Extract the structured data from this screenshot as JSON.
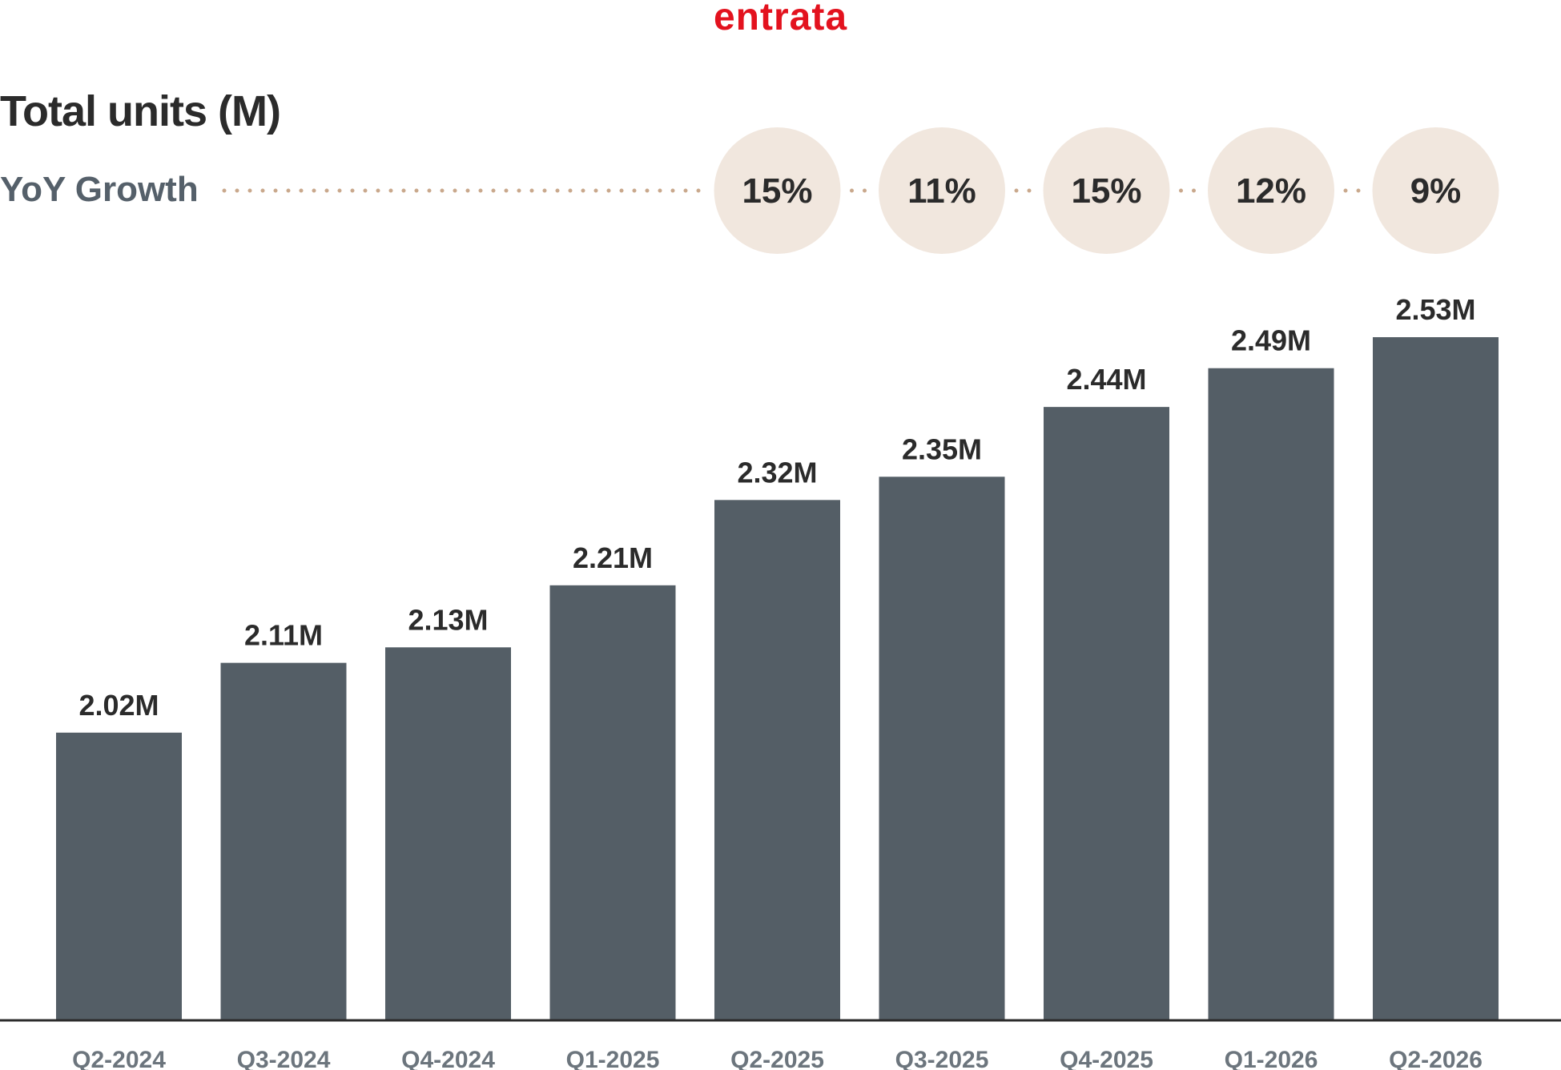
{
  "brand": {
    "logo_text": "entrata",
    "logo_color": "#e3121e"
  },
  "colors": {
    "bar": "#545e66",
    "bubble": "#f1e7de",
    "dots": "#c9a88c",
    "axis": "#2b2b2b",
    "value_label": "#2b2b2b",
    "tick_label": "#6c757d"
  },
  "chart_data": {
    "type": "bar",
    "title": "Total units (M)",
    "categories": [
      "Q2-2024",
      "Q3-2024",
      "Q4-2024",
      "Q1-2025",
      "Q2-2025",
      "Q3-2025",
      "Q4-2025",
      "Q1-2026",
      "Q2-2026"
    ],
    "values": [
      2.02,
      2.11,
      2.13,
      2.21,
      2.32,
      2.35,
      2.44,
      2.49,
      2.53
    ],
    "value_labels": [
      "2.02M",
      "2.11M",
      "2.13M",
      "2.21M",
      "2.32M",
      "2.35M",
      "2.44M",
      "2.49M",
      "2.53M"
    ],
    "ylim": [
      1.65,
      2.53
    ],
    "grid": false,
    "yoy_growth": {
      "label": "YoY Growth",
      "categories": [
        "Q2-2025",
        "Q3-2025",
        "Q4-2025",
        "Q1-2026",
        "Q2-2026"
      ],
      "values": [
        "15%",
        "11%",
        "15%",
        "12%",
        "9%"
      ]
    }
  }
}
